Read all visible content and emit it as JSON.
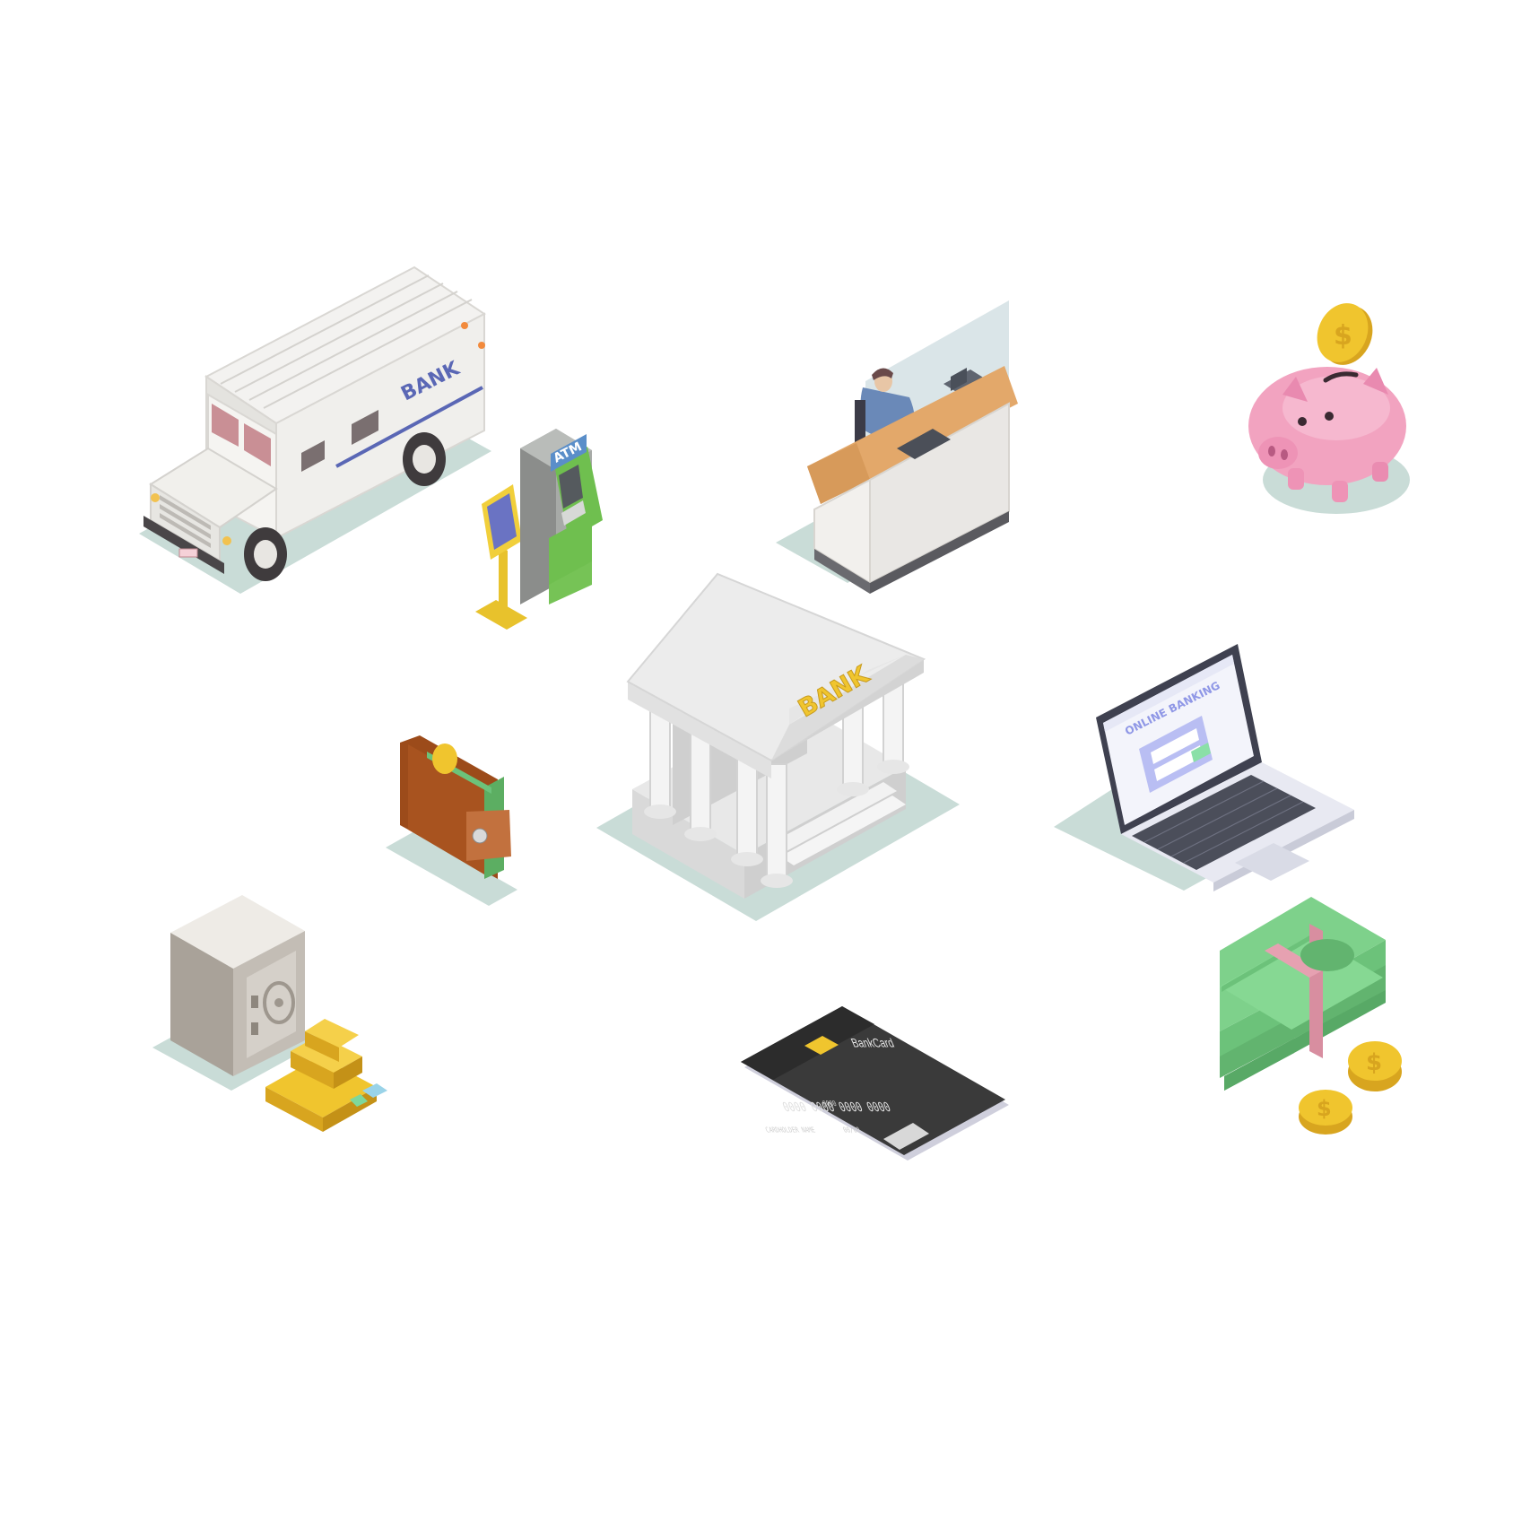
{
  "armored_truck": {
    "side_text": "BANK"
  },
  "atm": {
    "header_text": "ATM"
  },
  "bank_building": {
    "pediment_text": "BANK"
  },
  "laptop": {
    "screen_title": "ONLINE BANKING"
  },
  "bank_card": {
    "brand": "BankCard",
    "number_line": "0000  0000  0000  0000",
    "small_number": "0000",
    "holder": "CARDHOLDER NAME",
    "expiry": "00/00"
  },
  "coin_symbol": "$",
  "colors": {
    "background": "#ffffff",
    "ground_shadow": "#c9dcd7",
    "gold": "#f0c52e",
    "cash_green": "#6cc27a",
    "piggy_pink": "#f2a3c0",
    "atm_green": "#6fbf4f",
    "wallet_brown": "#a8531f",
    "card_black": "#3a3a3a",
    "laptop_accent": "#8f97e6"
  },
  "icons": [
    "armored-truck-icon",
    "atm-icon",
    "kiosk-icon",
    "bank-teller-icon",
    "piggy-bank-icon",
    "bank-building-icon",
    "wallet-icon",
    "laptop-icon",
    "safe-icon",
    "gold-bars-icon",
    "credit-card-icon",
    "cash-stack-icon",
    "coin-icon"
  ]
}
